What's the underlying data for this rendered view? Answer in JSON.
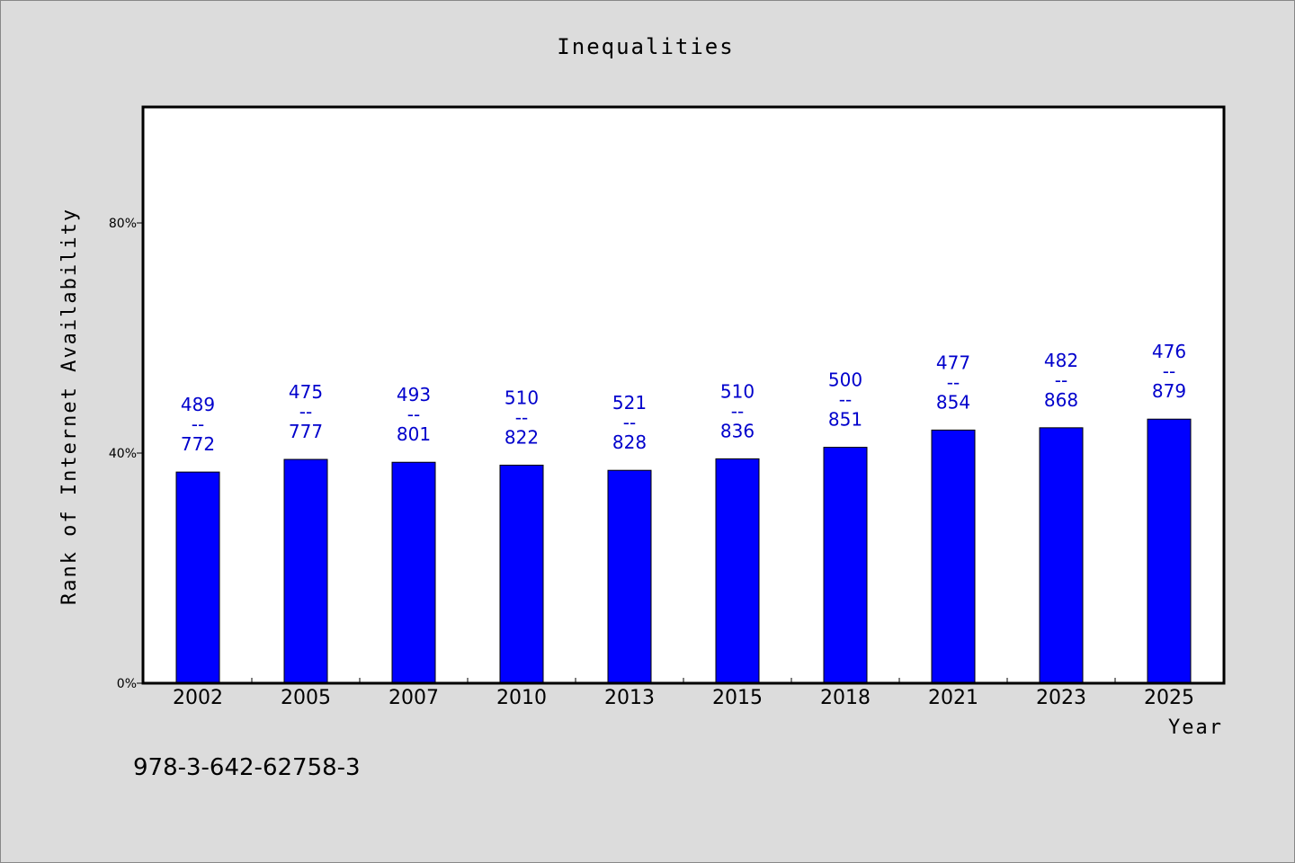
{
  "chart_data": {
    "type": "bar",
    "title": "Inequalities",
    "xlabel": "Year",
    "ylabel": "Rank of Internet Availability",
    "categories": [
      "2002",
      "2005",
      "2007",
      "2010",
      "2013",
      "2015",
      "2018",
      "2021",
      "2023",
      "2025"
    ],
    "values": [
      36.7,
      38.9,
      38.4,
      37.9,
      37.0,
      39.0,
      41.0,
      44.0,
      44.4,
      45.9
    ],
    "ylim": [
      0,
      100
    ],
    "yticks": [
      0,
      40,
      80
    ],
    "ytick_labels": [
      "0%",
      "40%",
      "80%"
    ],
    "data_labels": [
      {
        "top": "489",
        "sep": "--",
        "bottom": "772"
      },
      {
        "top": "475",
        "sep": "--",
        "bottom": "777"
      },
      {
        "top": "493",
        "sep": "--",
        "bottom": "801"
      },
      {
        "top": "510",
        "sep": "--",
        "bottom": "822"
      },
      {
        "top": "521",
        "sep": "--",
        "bottom": "828"
      },
      {
        "top": "510",
        "sep": "--",
        "bottom": "836"
      },
      {
        "top": "500",
        "sep": "--",
        "bottom": "851"
      },
      {
        "top": "477",
        "sep": "--",
        "bottom": "854"
      },
      {
        "top": "482",
        "sep": "--",
        "bottom": "868"
      },
      {
        "top": "476",
        "sep": "--",
        "bottom": "879"
      }
    ],
    "bar_color": "#0000ff",
    "label_color": "#0000cc",
    "grid": false
  },
  "footnote": "978-3-642-62758-3"
}
